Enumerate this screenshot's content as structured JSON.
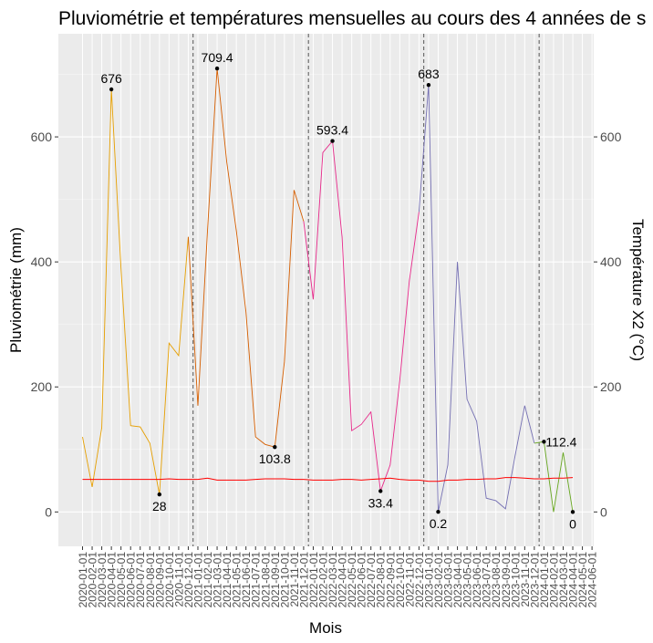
{
  "chart_data": {
    "type": "line",
    "title": "Pluviométrie et températures mensuelles au cours des 4 années de s",
    "xlabel": "Mois",
    "ylabel": "Pluviométrie (mm)",
    "y2label": "Température X2 (°C)",
    "ylim": [
      -55,
      765
    ],
    "y_ticks": [
      0,
      200,
      400,
      600
    ],
    "y2_ticks": [
      0,
      200,
      400,
      600
    ],
    "grid": true,
    "x_ticks": [
      "2020-01-01",
      "2020-02-01",
      "2020-03-01",
      "2020-04-01",
      "2020-05-01",
      "2020-06-01",
      "2020-07-01",
      "2020-08-01",
      "2020-09-01",
      "2020-10-01",
      "2020-11-01",
      "2020-12-01",
      "2021-01-01",
      "2021-02-01",
      "2021-03-01",
      "2021-04-01",
      "2021-05-01",
      "2021-06-01",
      "2021-07-01",
      "2021-08-01",
      "2021-09-01",
      "2021-10-01",
      "2021-11-01",
      "2021-12-01",
      "2022-01-01",
      "2022-02-01",
      "2022-03-01",
      "2022-04-01",
      "2022-05-01",
      "2022-06-01",
      "2022-07-01",
      "2022-08-01",
      "2022-09-01",
      "2022-10-01",
      "2022-11-01",
      "2022-12-01",
      "2023-01-01",
      "2023-02-01",
      "2023-03-01",
      "2023-04-01",
      "2023-05-01",
      "2023-06-01",
      "2023-07-01",
      "2023-08-01",
      "2023-09-01",
      "2023-10-01",
      "2023-11-01",
      "2023-12-01",
      "2024-01-01",
      "2024-02-01",
      "2024-03-01",
      "2024-04-01",
      "2024-05-01",
      "2024-06-01"
    ],
    "year_separators": [
      "2020-12-01",
      "2021-12-01",
      "2022-12-01",
      "2023-12-01"
    ],
    "series": [
      {
        "color": "#E69F00",
        "x": [
          "2020-01-01",
          "2020-02-01",
          "2020-03-01",
          "2020-04-01",
          "2020-05-01",
          "2020-06-01",
          "2020-07-01",
          "2020-08-01",
          "2020-09-01",
          "2020-10-01",
          "2020-11-01",
          "2020-12-01"
        ],
        "values": [
          120,
          40,
          135,
          676,
          390,
          138,
          136,
          110,
          28,
          270,
          250,
          440
        ]
      },
      {
        "color": "#D55E00",
        "x": [
          "2020-12-01",
          "2021-01-01",
          "2021-02-01",
          "2021-03-01",
          "2021-04-01",
          "2021-05-01",
          "2021-06-01",
          "2021-07-01",
          "2021-08-01",
          "2021-09-01",
          "2021-10-01",
          "2021-11-01",
          "2021-12-01"
        ],
        "values": [
          440,
          170,
          450,
          709.4,
          560,
          450,
          320,
          120,
          108,
          103.8,
          240,
          515,
          465
        ]
      },
      {
        "color": "#E7298A",
        "x": [
          "2021-12-01",
          "2022-01-01",
          "2022-02-01",
          "2022-03-01",
          "2022-04-01",
          "2022-05-01",
          "2022-06-01",
          "2022-07-01",
          "2022-08-01",
          "2022-09-01",
          "2022-10-01",
          "2022-11-01",
          "2022-12-01"
        ],
        "values": [
          465,
          340,
          575,
          593.4,
          440,
          130,
          140,
          160,
          33.4,
          75,
          210,
          370,
          480
        ]
      },
      {
        "color": "#7570B3",
        "x": [
          "2022-12-01",
          "2023-01-01",
          "2023-02-01",
          "2023-03-01",
          "2023-04-01",
          "2023-05-01",
          "2023-06-01",
          "2023-07-01",
          "2023-08-01",
          "2023-09-01",
          "2023-10-01",
          "2023-11-01",
          "2023-12-01"
        ],
        "values": [
          480,
          683,
          0.2,
          75,
          400,
          180,
          145,
          22,
          18,
          5,
          90,
          170,
          110
        ]
      },
      {
        "color": "#66A61E",
        "x": [
          "2023-12-01",
          "2024-01-01",
          "2024-02-01",
          "2024-03-01",
          "2024-04-01"
        ],
        "values": [
          110,
          112.4,
          0,
          95,
          0
        ]
      },
      {
        "color": "#FF0000",
        "axis": "y2",
        "x": [
          "2020-01-01",
          "2020-02-01",
          "2020-03-01",
          "2020-04-01",
          "2020-05-01",
          "2020-06-01",
          "2020-07-01",
          "2020-08-01",
          "2020-09-01",
          "2020-10-01",
          "2020-11-01",
          "2020-12-01",
          "2021-01-01",
          "2021-02-01",
          "2021-03-01",
          "2021-04-01",
          "2021-05-01",
          "2021-06-01",
          "2021-07-01",
          "2021-08-01",
          "2021-09-01",
          "2021-10-01",
          "2021-11-01",
          "2021-12-01",
          "2022-01-01",
          "2022-02-01",
          "2022-03-01",
          "2022-04-01",
          "2022-05-01",
          "2022-06-01",
          "2022-07-01",
          "2022-08-01",
          "2022-09-01",
          "2022-10-01",
          "2022-11-01",
          "2022-12-01",
          "2023-01-01",
          "2023-02-01",
          "2023-03-01",
          "2023-04-01",
          "2023-05-01",
          "2023-06-01",
          "2023-07-01",
          "2023-08-01",
          "2023-09-01",
          "2023-10-01",
          "2023-11-01",
          "2023-12-01",
          "2024-01-01",
          "2024-02-01",
          "2024-03-01",
          "2024-04-01"
        ],
        "values": [
          52,
          52,
          52,
          52,
          52,
          52,
          52,
          52,
          52,
          53,
          52,
          52,
          52,
          54,
          51,
          51,
          51,
          51,
          52,
          53,
          53,
          53,
          52,
          52,
          51,
          51,
          51,
          52,
          52,
          51,
          52,
          53,
          54,
          52,
          51,
          51,
          49,
          49,
          51,
          51,
          52,
          52,
          53,
          53,
          55,
          55,
          54,
          53,
          53,
          54,
          54,
          55
        ]
      }
    ],
    "annotations": [
      {
        "x": "2020-04-01",
        "y": 676,
        "label": "676",
        "pos": "above"
      },
      {
        "x": "2020-09-01",
        "y": 28,
        "label": "28",
        "pos": "below"
      },
      {
        "x": "2021-03-01",
        "y": 709.4,
        "label": "709.4",
        "pos": "above"
      },
      {
        "x": "2021-09-01",
        "y": 103.8,
        "label": "103.8",
        "pos": "below"
      },
      {
        "x": "2022-03-01",
        "y": 593.4,
        "label": "593.4",
        "pos": "above"
      },
      {
        "x": "2022-08-01",
        "y": 33.4,
        "label": "33.4",
        "pos": "below"
      },
      {
        "x": "2023-01-01",
        "y": 683,
        "label": "683",
        "pos": "above"
      },
      {
        "x": "2023-02-01",
        "y": 0.2,
        "label": "0.2",
        "pos": "below"
      },
      {
        "x": "2024-01-01",
        "y": 112.4,
        "label": "112.4",
        "pos": "right"
      },
      {
        "x": "2024-04-01",
        "y": 0,
        "label": "0",
        "pos": "below"
      }
    ]
  }
}
